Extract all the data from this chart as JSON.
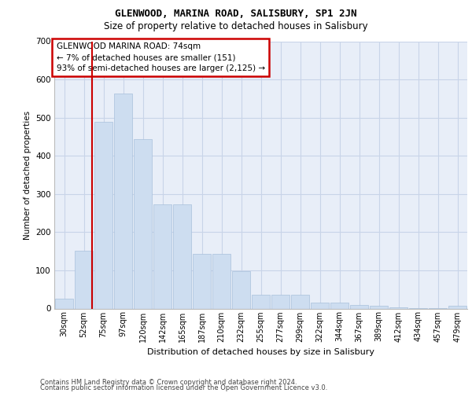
{
  "title": "GLENWOOD, MARINA ROAD, SALISBURY, SP1 2JN",
  "subtitle": "Size of property relative to detached houses in Salisbury",
  "xlabel": "Distribution of detached houses by size in Salisbury",
  "ylabel": "Number of detached properties",
  "categories": [
    "30sqm",
    "52sqm",
    "75sqm",
    "97sqm",
    "120sqm",
    "142sqm",
    "165sqm",
    "187sqm",
    "210sqm",
    "232sqm",
    "255sqm",
    "277sqm",
    "299sqm",
    "322sqm",
    "344sqm",
    "367sqm",
    "389sqm",
    "412sqm",
    "434sqm",
    "457sqm",
    "479sqm"
  ],
  "values": [
    25,
    151,
    490,
    563,
    443,
    273,
    273,
    143,
    143,
    97,
    37,
    37,
    37,
    15,
    15,
    10,
    7,
    3,
    2,
    1,
    7
  ],
  "bar_color": "#cdddf0",
  "bar_edge_color": "#a8c0dc",
  "grid_color": "#c8d4e8",
  "background_color": "#e8eef8",
  "annotation_text": "GLENWOOD MARINA ROAD: 74sqm\n← 7% of detached houses are smaller (151)\n93% of semi-detached houses are larger (2,125) →",
  "annotation_box_bg": "#ffffff",
  "annotation_box_edge": "#cc0000",
  "vline_color": "#cc0000",
  "vline_x": 1.43,
  "ylim": [
    0,
    700
  ],
  "yticks": [
    0,
    100,
    200,
    300,
    400,
    500,
    600,
    700
  ],
  "footer_line1": "Contains HM Land Registry data © Crown copyright and database right 2024.",
  "footer_line2": "Contains public sector information licensed under the Open Government Licence v3.0."
}
